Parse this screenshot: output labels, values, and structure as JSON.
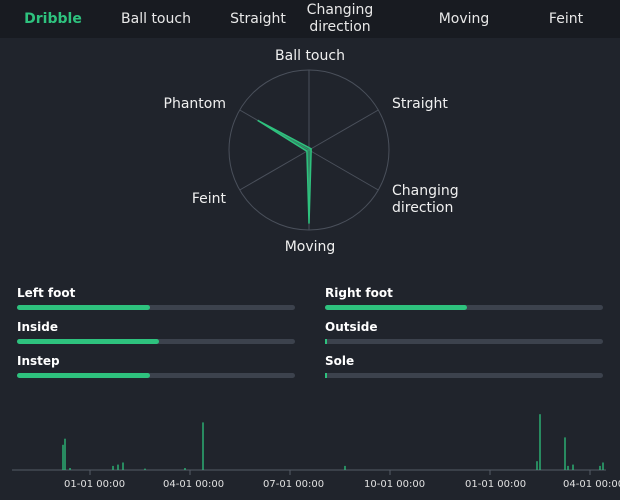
{
  "colors": {
    "accent": "#2ec27e",
    "background": "#20242c",
    "tabbar": "#181b21",
    "track": "#3c424d"
  },
  "tabs": [
    {
      "label": "Dribble",
      "active": true
    },
    {
      "label": "Ball touch",
      "active": false
    },
    {
      "label": "Straight",
      "active": false
    },
    {
      "label": "Changing direction",
      "active": false
    },
    {
      "label": "Moving",
      "active": false
    },
    {
      "label": "Feint",
      "active": false
    }
  ],
  "radar": {
    "axes": [
      "Ball touch",
      "Straight",
      "Changing direction",
      "Moving",
      "Feint",
      "Phantom"
    ],
    "max": 1,
    "values": [
      0.0,
      0.0,
      0.0,
      0.92,
      0.0,
      0.74
    ]
  },
  "bars": {
    "left_foot": {
      "label": "Left foot",
      "value": 0.48
    },
    "right_foot": {
      "label": "Right foot",
      "value": 0.51
    },
    "inside": {
      "label": "Inside",
      "value": 0.51
    },
    "outside": {
      "label": "Outside",
      "value": 0.0
    },
    "instep": {
      "label": "Instep",
      "value": 0.48
    },
    "sole": {
      "label": "Sole",
      "value": 0.0
    }
  },
  "timeline": {
    "tick_labels": [
      "01-01 00:00",
      "04-01 00:00",
      "07-01 00:00",
      "10-01 00:00",
      "01-01 00:00",
      "04-01 00:00"
    ],
    "max": 1,
    "spikes": [
      {
        "t": -0.27,
        "v": 0.37
      },
      {
        "t": -0.25,
        "v": 0.46
      },
      {
        "t": -0.2,
        "v": 0.03
      },
      {
        "t": 0.23,
        "v": 0.06
      },
      {
        "t": 0.28,
        "v": 0.08
      },
      {
        "t": 0.33,
        "v": 0.11
      },
      {
        "t": 0.55,
        "v": 0.02
      },
      {
        "t": 0.95,
        "v": 0.03
      },
      {
        "t": 1.13,
        "v": 0.7
      },
      {
        "t": 2.55,
        "v": 0.06
      },
      {
        "t": 4.47,
        "v": 0.13
      },
      {
        "t": 4.5,
        "v": 0.82
      },
      {
        "t": 4.75,
        "v": 0.48
      },
      {
        "t": 4.78,
        "v": 0.06
      },
      {
        "t": 4.83,
        "v": 0.08
      },
      {
        "t": 5.1,
        "v": 0.06
      },
      {
        "t": 5.13,
        "v": 0.11
      }
    ]
  }
}
